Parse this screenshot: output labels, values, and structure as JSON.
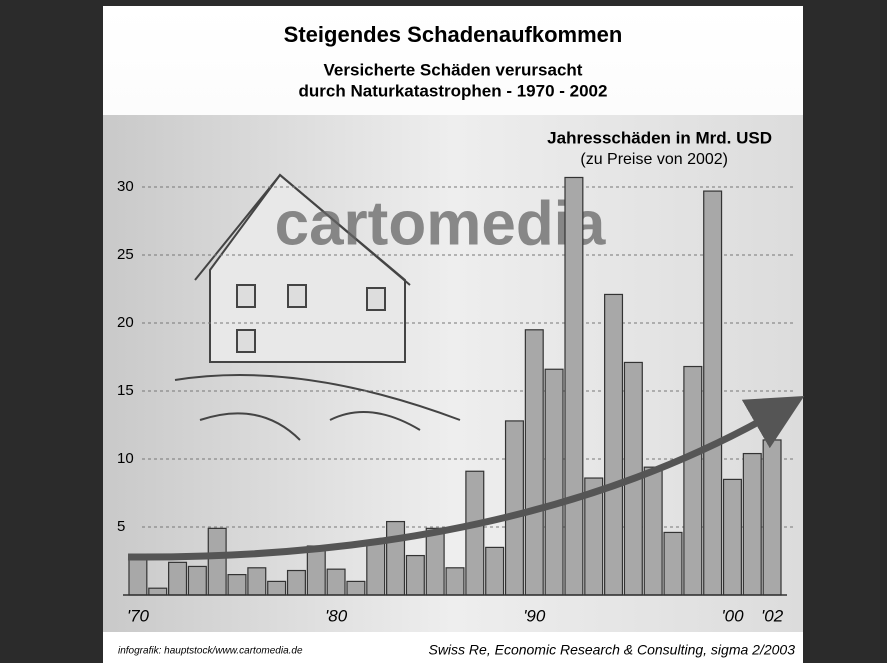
{
  "chart_data": {
    "type": "bar",
    "title": "Steigendes Schadenaufkommen",
    "subtitle": [
      "Versicherte Schäden verursacht",
      "durch Naturkatastrophen - 1970 - 2002"
    ],
    "ylabel": [
      "Jahresschäden in Mrd. USD",
      "(zu Preise von 2002)"
    ],
    "watermark": "cartomedia",
    "credit": "infografik: hauptstock/www.cartomedia.de",
    "source": "Swiss Re, Economic Research & Consulting, sigma 2/2003",
    "categories": [
      "'70",
      null,
      null,
      null,
      null,
      null,
      null,
      null,
      null,
      null,
      "'80",
      null,
      null,
      null,
      null,
      null,
      null,
      null,
      null,
      null,
      "'90",
      null,
      null,
      null,
      null,
      null,
      null,
      null,
      null,
      null,
      "'00",
      null,
      "'02"
    ],
    "values": [
      2.6,
      0.5,
      2.4,
      2.1,
      4.9,
      1.5,
      2.0,
      1.0,
      1.8,
      3.6,
      1.9,
      1.0,
      3.9,
      5.4,
      2.9,
      4.9,
      2.0,
      9.1,
      3.5,
      12.8,
      19.5,
      16.6,
      30.7,
      8.6,
      22.1,
      17.1,
      9.4,
      4.6,
      16.8,
      29.7,
      8.5,
      10.4,
      11.4
    ],
    "color": "#a8a8a8",
    "ylim": [
      0,
      31
    ],
    "yticks": [
      5,
      10,
      15,
      20,
      25,
      30
    ],
    "grid": true
  }
}
